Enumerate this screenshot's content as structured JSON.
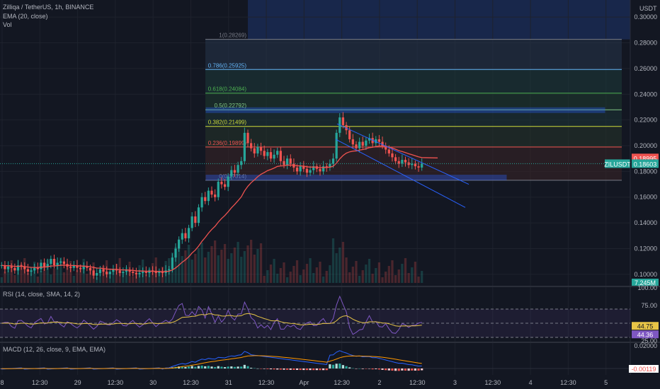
{
  "header": {
    "symbol_line": "Zilliqa / TetherUS, 1h, BINANCE",
    "ema_line": "EMA (20, close)",
    "vol_line": "Vol",
    "currency": "USDT"
  },
  "colors": {
    "bg": "#131722",
    "up": "#26a69a",
    "down": "#ef5350",
    "ema": "#ef5350",
    "fib_blue": "#2962ff",
    "channel": "#2962ff",
    "rsi": "#7e57c2",
    "rsi_ma": "#e8c547",
    "macd": "#2962ff",
    "signal": "#ff9800"
  },
  "chart_data": [
    {
      "type": "candlestick",
      "title": "Zilliqa / TetherUS, 1h, BINANCE",
      "ylabel": "USDT",
      "ylim": [
        0.09,
        0.31
      ],
      "yticks": [
        "0.30000",
        "0.28000",
        "0.26000",
        "0.24000",
        "0.22000",
        "0.20000",
        "0.18000",
        "0.16000",
        "0.14000",
        "0.12000",
        "0.10000"
      ],
      "ytick_values": [
        0.3,
        0.28,
        0.26,
        0.24,
        0.22,
        0.2,
        0.18,
        0.16,
        0.14,
        0.12,
        0.1
      ],
      "xticks": [
        "8",
        "12:30",
        "29",
        "12:30",
        "30",
        "12:30",
        "31",
        "12:30",
        "Apr",
        "12:30",
        "2",
        "12:30",
        "3",
        "12:30",
        "4",
        "12:30",
        "5"
      ],
      "fib_levels": [
        {
          "ratio": "1",
          "value": 0.28269,
          "label": "1(0.28269)"
        },
        {
          "ratio": "0.786",
          "value": 0.25925,
          "label": "0.786(0.25925)"
        },
        {
          "ratio": "0.618",
          "value": 0.24084,
          "label": "0.618(0.24084)"
        },
        {
          "ratio": "0.5",
          "value": 0.22792,
          "label": "0.5(0.22792)"
        },
        {
          "ratio": "0.382",
          "value": 0.21499,
          "label": "0.382(0.21499)"
        },
        {
          "ratio": "0.236",
          "value": 0.19899,
          "label": "0.236(0.19899)"
        },
        {
          "ratio": "0",
          "value": 0.17314,
          "label": "0(0.17314)"
        }
      ],
      "price_tags": {
        "ema": "0.18995",
        "last": "0.18603",
        "symbol": "ZILUSDT",
        "volume": "7.245M"
      },
      "closes": [
        0.107,
        0.104,
        0.106,
        0.105,
        0.103,
        0.107,
        0.106,
        0.104,
        0.102,
        0.103,
        0.105,
        0.104,
        0.109,
        0.106,
        0.108,
        0.112,
        0.107,
        0.109,
        0.11,
        0.108,
        0.106,
        0.105,
        0.107,
        0.105,
        0.104,
        0.106,
        0.105,
        0.103,
        0.099,
        0.101,
        0.104,
        0.102,
        0.1,
        0.102,
        0.104,
        0.103,
        0.101,
        0.102,
        0.103,
        0.102,
        0.101,
        0.1,
        0.101,
        0.102,
        0.101,
        0.103,
        0.102,
        0.101,
        0.102,
        0.101,
        0.103,
        0.104,
        0.113,
        0.12,
        0.127,
        0.132,
        0.128,
        0.136,
        0.145,
        0.14,
        0.152,
        0.16,
        0.157,
        0.165,
        0.162,
        0.16,
        0.172,
        0.17,
        0.168,
        0.176,
        0.181,
        0.179,
        0.185,
        0.188,
        0.21,
        0.202,
        0.198,
        0.194,
        0.199,
        0.196,
        0.192,
        0.195,
        0.19,
        0.193,
        0.196,
        0.188,
        0.185,
        0.19,
        0.186,
        0.183,
        0.18,
        0.184,
        0.182,
        0.179,
        0.181,
        0.184,
        0.182,
        0.18,
        0.184,
        0.183,
        0.186,
        0.19,
        0.21,
        0.222,
        0.216,
        0.212,
        0.205,
        0.201,
        0.198,
        0.203,
        0.2,
        0.204,
        0.206,
        0.202,
        0.205,
        0.203,
        0.2,
        0.197,
        0.194,
        0.191,
        0.188,
        0.186,
        0.189,
        0.187,
        0.185,
        0.186,
        0.184,
        0.183,
        0.186
      ]
    },
    {
      "type": "line",
      "title": "RSI (14, close, SMA, 14, 2)",
      "ylim": [
        25,
        100
      ],
      "yticks": [
        "100.00",
        "75.00",
        "25.00"
      ],
      "bands": [
        70,
        50,
        30
      ],
      "rsi_value": "44.75",
      "rsi_ma_value": "44.36"
    },
    {
      "type": "bar",
      "title": "MACD (12, 26, close, 9, EMA, EMA)",
      "yticks": [
        "0.02000",
        "0.00000"
      ],
      "last_value": "-0.00119"
    }
  ]
}
